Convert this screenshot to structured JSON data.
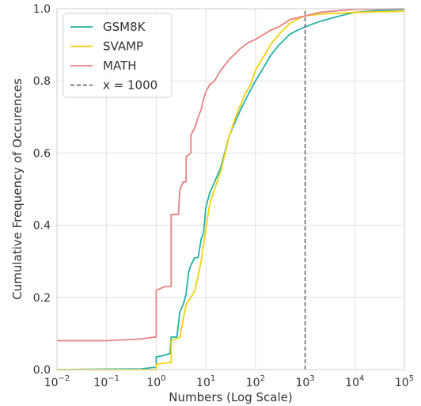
{
  "chart_data": {
    "type": "line",
    "xlabel": "Numbers (Log Scale)",
    "ylabel": "Cumulative Frequency of Occurences",
    "xscale": "log",
    "xlim": [
      0.01,
      100000
    ],
    "ylim": [
      0.0,
      1.0
    ],
    "grid": true,
    "legend_position": "top-left",
    "x_tick_base": "10",
    "x_ticks": [
      {
        "exponent": "−2",
        "value": 0.01
      },
      {
        "exponent": "−1",
        "value": 0.1
      },
      {
        "exponent": "0",
        "value": 1
      },
      {
        "exponent": "1",
        "value": 10
      },
      {
        "exponent": "2",
        "value": 100
      },
      {
        "exponent": "3",
        "value": 1000
      },
      {
        "exponent": "4",
        "value": 10000
      },
      {
        "exponent": "5",
        "value": 100000
      }
    ],
    "y_ticks": [
      {
        "label": "0.0",
        "value": 0.0
      },
      {
        "label": "0.2",
        "value": 0.2
      },
      {
        "label": "0.4",
        "value": 0.4
      },
      {
        "label": "0.6",
        "value": 0.6
      },
      {
        "label": "0.8",
        "value": 0.8
      },
      {
        "label": "1.0",
        "value": 1.0
      }
    ],
    "series": [
      {
        "name": "GSM8K",
        "color": "#20b2aa",
        "dash": false,
        "points": [
          [
            0.01,
            0.0
          ],
          [
            0.5,
            0.002
          ],
          [
            0.9,
            0.006
          ],
          [
            1.0,
            0.006
          ],
          [
            1.0,
            0.035
          ],
          [
            1.5,
            0.04
          ],
          [
            1.9,
            0.045
          ],
          [
            2.0,
            0.09
          ],
          [
            2.6,
            0.09
          ],
          [
            3.0,
            0.16
          ],
          [
            3.5,
            0.18
          ],
          [
            4.0,
            0.21
          ],
          [
            4.5,
            0.27
          ],
          [
            5.0,
            0.29
          ],
          [
            6.0,
            0.31
          ],
          [
            7.0,
            0.31
          ],
          [
            8.0,
            0.36
          ],
          [
            9.0,
            0.38
          ],
          [
            10.0,
            0.45
          ],
          [
            12,
            0.49
          ],
          [
            15,
            0.52
          ],
          [
            20,
            0.56
          ],
          [
            25,
            0.61
          ],
          [
            30,
            0.65
          ],
          [
            40,
            0.69
          ],
          [
            50,
            0.72
          ],
          [
            70,
            0.76
          ],
          [
            100,
            0.8
          ],
          [
            150,
            0.84
          ],
          [
            200,
            0.87
          ],
          [
            300,
            0.9
          ],
          [
            500,
            0.93
          ],
          [
            700,
            0.94
          ],
          [
            1000,
            0.95
          ],
          [
            2000,
            0.965
          ],
          [
            5000,
            0.98
          ],
          [
            10000,
            0.99
          ],
          [
            30000,
            0.995
          ],
          [
            100000,
            0.998
          ]
        ]
      },
      {
        "name": "SVAMP",
        "color": "#f5d10a",
        "dash": false,
        "points": [
          [
            0.01,
            0.0
          ],
          [
            0.9,
            0.0
          ],
          [
            1.0,
            0.0
          ],
          [
            1.0,
            0.015
          ],
          [
            2.0,
            0.02
          ],
          [
            2.0,
            0.08
          ],
          [
            3.0,
            0.09
          ],
          [
            3.5,
            0.14
          ],
          [
            4.0,
            0.18
          ],
          [
            5.0,
            0.2
          ],
          [
            6.0,
            0.22
          ],
          [
            7.0,
            0.26
          ],
          [
            8.0,
            0.3
          ],
          [
            10.0,
            0.39
          ],
          [
            12,
            0.46
          ],
          [
            15,
            0.5
          ],
          [
            20,
            0.55
          ],
          [
            30,
            0.65
          ],
          [
            40,
            0.7
          ],
          [
            60,
            0.76
          ],
          [
            80,
            0.79
          ],
          [
            100,
            0.83
          ],
          [
            150,
            0.87
          ],
          [
            200,
            0.9
          ],
          [
            300,
            0.93
          ],
          [
            500,
            0.96
          ],
          [
            800,
            0.975
          ],
          [
            1000,
            0.98
          ],
          [
            2000,
            0.985
          ],
          [
            10000,
            0.99
          ],
          [
            100000,
            0.993
          ]
        ]
      },
      {
        "name": "MATH",
        "color": "#e98080",
        "dash": false,
        "points": [
          [
            0.01,
            0.08
          ],
          [
            0.1,
            0.08
          ],
          [
            0.5,
            0.085
          ],
          [
            0.9,
            0.09
          ],
          [
            1.0,
            0.09
          ],
          [
            1.0,
            0.22
          ],
          [
            1.5,
            0.23
          ],
          [
            2.0,
            0.23
          ],
          [
            2.0,
            0.43
          ],
          [
            2.8,
            0.43
          ],
          [
            3.0,
            0.5
          ],
          [
            3.5,
            0.52
          ],
          [
            4.0,
            0.52
          ],
          [
            4.0,
            0.59
          ],
          [
            5.0,
            0.6
          ],
          [
            5.0,
            0.65
          ],
          [
            6.0,
            0.67
          ],
          [
            7.0,
            0.7
          ],
          [
            8.0,
            0.72
          ],
          [
            9.0,
            0.75
          ],
          [
            10.0,
            0.77
          ],
          [
            12,
            0.79
          ],
          [
            15,
            0.8
          ],
          [
            20,
            0.83
          ],
          [
            30,
            0.86
          ],
          [
            50,
            0.89
          ],
          [
            70,
            0.905
          ],
          [
            100,
            0.915
          ],
          [
            200,
            0.94
          ],
          [
            300,
            0.95
          ],
          [
            500,
            0.97
          ],
          [
            1000,
            0.98
          ],
          [
            2000,
            0.99
          ],
          [
            5000,
            0.995
          ],
          [
            10000,
            0.998
          ],
          [
            100000,
            1.0
          ]
        ]
      },
      {
        "name": "x = 1000",
        "color": "#555555",
        "dash": true,
        "points": [
          [
            1000,
            0.0
          ],
          [
            1000,
            1.0
          ]
        ]
      }
    ]
  }
}
